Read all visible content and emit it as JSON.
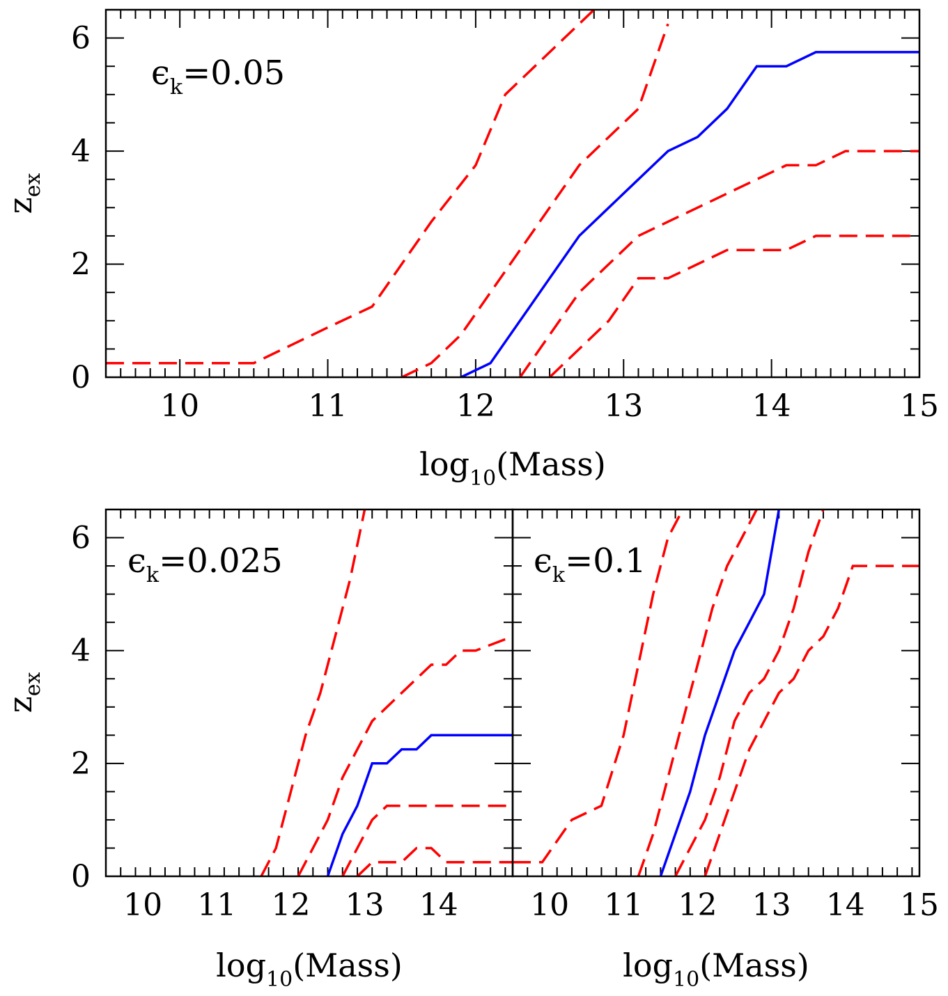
{
  "chart_data": [
    {
      "type": "line",
      "annotation": {
        "symbol": "ϵ",
        "sub": "k",
        "text": "=0.05"
      },
      "xlabel": {
        "prefix": "log",
        "sub": "10",
        "suffix": "(Mass)"
      },
      "ylabel": {
        "prefix": "z",
        "sub": "ex"
      },
      "xlim": [
        9.5,
        15
      ],
      "ylim": [
        0,
        6.5
      ],
      "xticks": [
        10,
        11,
        12,
        13,
        14,
        15
      ],
      "yticks": [
        0,
        2,
        4,
        6
      ],
      "series": [
        {
          "name": "dashed-1",
          "style": "dashed",
          "color": "#ff0000",
          "x": [
            9.5,
            10.5,
            11.0,
            11.3,
            11.5,
            11.7,
            12.0,
            12.2,
            12.4,
            12.6,
            12.8
          ],
          "y": [
            0.25,
            0.25,
            0.88,
            1.25,
            2.0,
            2.75,
            3.75,
            5.0,
            5.5,
            6.0,
            6.5
          ]
        },
        {
          "name": "dashed-2",
          "style": "dashed",
          "color": "#ff0000",
          "x": [
            11.5,
            11.7,
            11.9,
            12.1,
            12.3,
            12.5,
            12.7,
            13.0,
            13.1,
            13.2,
            13.3
          ],
          "y": [
            0.0,
            0.25,
            0.75,
            1.5,
            2.25,
            3.0,
            3.75,
            4.5,
            4.75,
            5.5,
            6.25
          ]
        },
        {
          "name": "solid",
          "style": "solid",
          "color": "#0000ff",
          "x": [
            11.9,
            12.1,
            12.3,
            12.5,
            12.7,
            12.9,
            13.1,
            13.3,
            13.5,
            13.7,
            13.9,
            14.1,
            14.3,
            15.0
          ],
          "y": [
            0.0,
            0.25,
            1.0,
            1.75,
            2.5,
            3.0,
            3.5,
            4.0,
            4.25,
            4.75,
            5.5,
            5.5,
            5.75,
            5.75
          ]
        },
        {
          "name": "dashed-3",
          "style": "dashed",
          "color": "#ff0000",
          "x": [
            12.3,
            12.5,
            12.7,
            12.9,
            13.1,
            13.3,
            13.5,
            13.7,
            13.9,
            14.1,
            14.3,
            14.5,
            15.0
          ],
          "y": [
            0.0,
            0.75,
            1.5,
            2.0,
            2.5,
            2.75,
            3.0,
            3.25,
            3.5,
            3.75,
            3.75,
            4.0,
            4.0
          ]
        },
        {
          "name": "dashed-4",
          "style": "dashed",
          "color": "#ff0000",
          "x": [
            12.5,
            12.7,
            12.9,
            13.1,
            13.3,
            13.5,
            13.7,
            13.9,
            14.1,
            14.3,
            15.0
          ],
          "y": [
            0.0,
            0.5,
            1.0,
            1.75,
            1.75,
            2.0,
            2.25,
            2.25,
            2.25,
            2.5,
            2.5
          ]
        }
      ]
    },
    {
      "type": "line",
      "annotation": {
        "symbol": "ϵ",
        "sub": "k",
        "text": "=0.025"
      },
      "xlabel": {
        "prefix": "log",
        "sub": "10",
        "suffix": "(Mass)"
      },
      "ylabel": {
        "prefix": "z",
        "sub": "ex"
      },
      "xlim": [
        9.5,
        15
      ],
      "ylim": [
        0,
        6.5
      ],
      "xticks": [
        10,
        11,
        12,
        13,
        14
      ],
      "yticks": [
        0,
        2,
        4,
        6
      ],
      "series": [
        {
          "name": "dashed-1",
          "style": "dashed",
          "color": "#ff0000",
          "x": [
            11.6,
            11.8,
            12.0,
            12.2,
            12.4,
            12.6,
            12.8,
            13.0
          ],
          "y": [
            0.0,
            0.5,
            1.5,
            2.5,
            3.25,
            4.25,
            5.25,
            6.5
          ]
        },
        {
          "name": "dashed-2",
          "style": "dashed",
          "color": "#ff0000",
          "x": [
            12.1,
            12.3,
            12.5,
            12.7,
            12.9,
            13.1,
            13.3,
            13.5,
            13.7,
            13.9,
            14.1,
            14.3,
            14.5,
            15.0
          ],
          "y": [
            0.0,
            0.5,
            1.0,
            1.75,
            2.25,
            2.75,
            3.0,
            3.25,
            3.5,
            3.75,
            3.75,
            4.0,
            4.0,
            4.25
          ]
        },
        {
          "name": "solid",
          "style": "solid",
          "color": "#0000ff",
          "x": [
            12.5,
            12.7,
            12.9,
            13.1,
            13.3,
            13.5,
            13.7,
            13.9,
            14.1,
            15.0
          ],
          "y": [
            0.0,
            0.75,
            1.25,
            2.0,
            2.0,
            2.25,
            2.25,
            2.5,
            2.5,
            2.5
          ]
        },
        {
          "name": "dashed-3",
          "style": "dashed",
          "color": "#ff0000",
          "x": [
            12.7,
            12.9,
            13.1,
            13.3,
            15.0
          ],
          "y": [
            0.0,
            0.5,
            1.0,
            1.25,
            1.25
          ]
        },
        {
          "name": "dashed-4",
          "style": "dashed",
          "color": "#ff0000",
          "x": [
            12.9,
            13.1,
            13.3,
            13.5,
            13.7,
            13.9,
            14.1,
            15.0
          ],
          "y": [
            0.0,
            0.25,
            0.25,
            0.25,
            0.5,
            0.5,
            0.25,
            0.25
          ]
        }
      ]
    },
    {
      "type": "line",
      "annotation": {
        "symbol": "ϵ",
        "sub": "k",
        "text": "=0.1"
      },
      "xlabel": {
        "prefix": "log",
        "sub": "10",
        "suffix": "(Mass)"
      },
      "ylabel": null,
      "xlim": [
        9.5,
        15
      ],
      "ylim": [
        0,
        6.5
      ],
      "xticks": [
        10,
        11,
        12,
        13,
        14,
        15
      ],
      "yticks": [
        0,
        2,
        4,
        6
      ],
      "series": [
        {
          "name": "dashed-1",
          "style": "dashed",
          "color": "#ff0000",
          "x": [
            9.5,
            9.9,
            10.3,
            10.7,
            11.0,
            11.2,
            11.4,
            11.6,
            11.8
          ],
          "y": [
            0.25,
            0.25,
            1.0,
            1.25,
            2.5,
            3.75,
            5.0,
            6.0,
            6.5
          ]
        },
        {
          "name": "dashed-2",
          "style": "dashed",
          "color": "#ff0000",
          "x": [
            11.2,
            11.4,
            11.6,
            11.8,
            12.0,
            12.2,
            12.4,
            12.6,
            12.8
          ],
          "y": [
            0.0,
            0.75,
            1.75,
            2.75,
            3.75,
            4.75,
            5.5,
            6.0,
            6.5
          ]
        },
        {
          "name": "solid",
          "style": "solid",
          "color": "#0000ff",
          "x": [
            11.5,
            11.7,
            11.9,
            12.1,
            12.3,
            12.5,
            12.7,
            12.9,
            13.1
          ],
          "y": [
            0.0,
            0.75,
            1.5,
            2.5,
            3.25,
            4.0,
            4.5,
            5.0,
            6.5
          ]
        },
        {
          "name": "dashed-3",
          "style": "dashed",
          "color": "#ff0000",
          "x": [
            11.7,
            11.9,
            12.1,
            12.3,
            12.5,
            12.7,
            12.9,
            13.1,
            13.3,
            13.5,
            13.7
          ],
          "y": [
            0.0,
            0.5,
            1.0,
            1.75,
            2.75,
            3.25,
            3.5,
            4.0,
            4.75,
            5.75,
            6.5
          ]
        },
        {
          "name": "dashed-4",
          "style": "dashed",
          "color": "#ff0000",
          "x": [
            12.1,
            12.3,
            12.5,
            12.7,
            12.9,
            13.1,
            13.3,
            13.5,
            13.7,
            13.9,
            14.1,
            15.0
          ],
          "y": [
            0.0,
            0.75,
            1.5,
            2.25,
            2.75,
            3.25,
            3.5,
            4.0,
            4.25,
            4.75,
            5.5,
            5.5
          ]
        }
      ]
    }
  ]
}
